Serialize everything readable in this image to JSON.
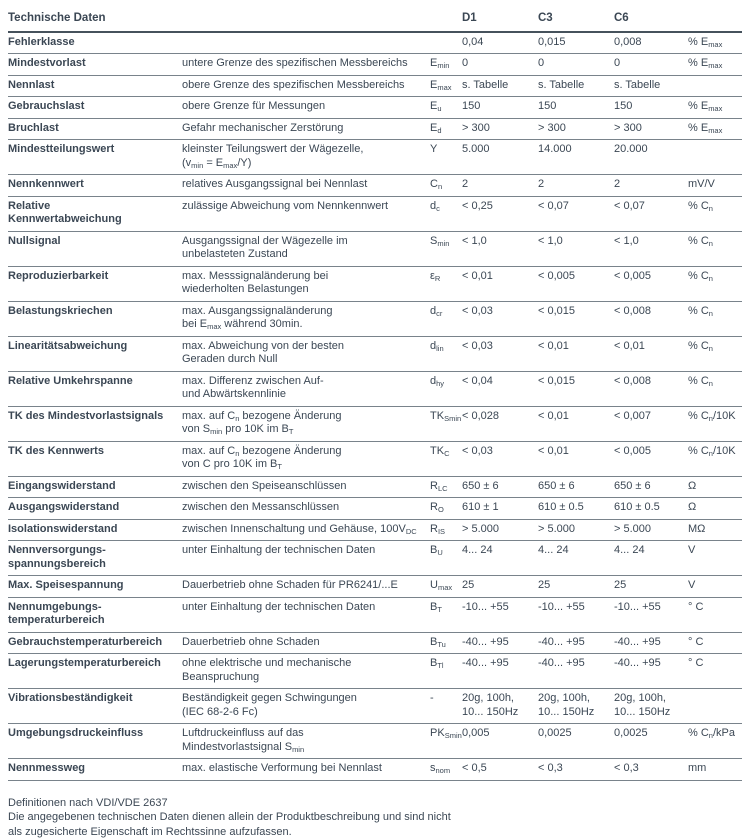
{
  "colors": {
    "text": "#3b4754",
    "rule": "#79838b",
    "header_rule": "#46525c",
    "background": "#ffffff"
  },
  "table": {
    "title": "Technische Daten",
    "columns": [
      "D1",
      "C3",
      "C6"
    ],
    "rows": [
      {
        "name": "Fehlerklasse",
        "desc": "",
        "sym": "",
        "v": [
          "0,04",
          "0,015",
          "0,008"
        ],
        "unit": "% E~max~"
      },
      {
        "name": "Mindestvorlast",
        "desc": "untere Grenze des spezifischen Messbereichs",
        "sym": "E~min~",
        "v": [
          "0",
          "0",
          "0"
        ],
        "unit": "% E~max~"
      },
      {
        "name": "Nennlast",
        "desc": "obere Grenze des spezifischen Messbereichs",
        "sym": "E~max~",
        "v": [
          "s. Tabelle",
          "s. Tabelle",
          "s. Tabelle"
        ],
        "unit": ""
      },
      {
        "name": "Gebrauchslast",
        "desc": "obere Grenze für Messungen",
        "sym": "E~u~",
        "v": [
          "150",
          "150",
          "150"
        ],
        "unit": "% E~max~"
      },
      {
        "name": "Bruchlast",
        "desc": "Gefahr mechanischer Zerstörung",
        "sym": "E~d~",
        "v": [
          "> 300",
          "> 300",
          "> 300"
        ],
        "unit": "% E~max~"
      },
      {
        "name": "Mindestteilungswert",
        "desc": "kleinster Teilungswert der Wägezelle,\n(v~min~ = E~max~/Y)",
        "sym": "Y",
        "v": [
          "5.000",
          "14.000",
          "20.000"
        ],
        "unit": ""
      },
      {
        "name": "Nennkennwert",
        "desc": "relatives Ausgangssignal bei Nennlast",
        "sym": "C~n~",
        "v": [
          "2",
          "2",
          "2"
        ],
        "unit": "mV/V"
      },
      {
        "name": "Relative\nKennwertabweichung",
        "desc": "zulässige Abweichung vom Nennkennwert",
        "sym": "d~c~",
        "v": [
          "< 0,25",
          "< 0,07",
          "< 0,07"
        ],
        "unit": "% C~n~"
      },
      {
        "name": "Nullsignal",
        "desc": "Ausgangssignal der Wägezelle im\nunbelasteten Zustand",
        "sym": "S~min~",
        "v": [
          "< 1,0",
          "< 1,0",
          "< 1,0"
        ],
        "unit": "% C~n~"
      },
      {
        "name": "Reproduzierbarkeit",
        "desc": "max. Messsignaländerung bei\nwiederholten Belastungen",
        "sym": "ε~R~",
        "v": [
          "< 0,01",
          "< 0,005",
          "< 0,005"
        ],
        "unit": "% C~n~"
      },
      {
        "name": "Belastungskriechen",
        "desc": "max. Ausgangssignaländerung\nbei E~max~ während 30min.",
        "sym": "d~cr~",
        "v": [
          "< 0,03",
          "< 0,015",
          "< 0,008"
        ],
        "unit": "% C~n~"
      },
      {
        "name": "Linearitätsabweichung",
        "desc": "max. Abweichung von der besten\nGeraden durch Null",
        "sym": "d~lin~",
        "v": [
          "< 0,03",
          "< 0,01",
          "< 0,01"
        ],
        "unit": "% C~n~"
      },
      {
        "name": "Relative Umkehrspanne",
        "desc": "max. Differenz zwischen Auf-\nund Abwärtskennlinie",
        "sym": "d~hy~",
        "v": [
          "< 0,04",
          "< 0,015",
          "< 0,008"
        ],
        "unit": "% C~n~"
      },
      {
        "name": "TK des Mindestvorlastsignals",
        "desc": "max. auf C~n~ bezogene Änderung\nvon S~min~ pro 10K im B~T~",
        "sym": "TK~Smin~",
        "v": [
          "< 0,028",
          "< 0,01",
          "< 0,007"
        ],
        "unit": "% C~n~/10K"
      },
      {
        "name": "TK des Kennwerts",
        "desc": "max. auf C~n~ bezogene Änderung\nvon C pro 10K im B~T~",
        "sym": "TK~C~",
        "v": [
          "< 0,03",
          "< 0,01",
          "< 0,005"
        ],
        "unit": "% C~n~/10K"
      },
      {
        "name": "Eingangswiderstand",
        "desc": "zwischen den Speiseanschlüssen",
        "sym": "R~LC~",
        "v": [
          "650 ± 6",
          "650 ± 6",
          "650 ± 6"
        ],
        "unit": "Ω"
      },
      {
        "name": "Ausgangswiderstand",
        "desc": "zwischen den Messanschlüssen",
        "sym": "R~O~",
        "v": [
          "610 ± 1",
          "610 ± 0.5",
          "610 ± 0.5"
        ],
        "unit": "Ω"
      },
      {
        "name": "Isolationswiderstand",
        "desc": "zwischen Innenschaltung und Gehäuse, 100V~DC~",
        "sym": "R~IS~",
        "v": [
          "> 5.000",
          "> 5.000",
          "> 5.000"
        ],
        "unit": "MΩ"
      },
      {
        "name": "Nennversorgungs-\nspannungsbereich",
        "desc": "unter Einhaltung der technischen Daten",
        "sym": "B~U~",
        "v": [
          "4... 24",
          "4... 24",
          "4... 24"
        ],
        "unit": "V"
      },
      {
        "name": "Max. Speisespannung",
        "desc": "Dauerbetrieb ohne Schaden für PR6241/...E",
        "sym": "U~max~",
        "v": [
          "25",
          "25",
          "25"
        ],
        "unit": "V"
      },
      {
        "name": "Nennumgebungs-\ntemperaturbereich",
        "desc": "unter Einhaltung der technischen Daten",
        "sym": "B~T~",
        "v": [
          "-10... +55",
          "-10... +55",
          "-10... +55"
        ],
        "unit": "° C"
      },
      {
        "name": "Gebrauchstemperaturbereich",
        "desc": "Dauerbetrieb ohne Schaden",
        "sym": "B~Tu~",
        "v": [
          "-40... +95",
          "-40... +95",
          "-40... +95"
        ],
        "unit": "° C"
      },
      {
        "name": "Lagerungstemperaturbereich",
        "desc": "ohne elektrische und mechanische\nBeanspruchung",
        "sym": "B~Tl~",
        "v": [
          "-40... +95",
          "-40... +95",
          "-40... +95"
        ],
        "unit": "° C"
      },
      {
        "name": "Vibrationsbeständigkeit",
        "desc": "Beständigkeit gegen Schwingungen\n(IEC 68-2-6 Fc)",
        "sym": "-",
        "v": [
          "20g, 100h,\n10... 150Hz",
          "20g, 100h,\n10... 150Hz",
          "20g, 100h,\n10... 150Hz"
        ],
        "unit": ""
      },
      {
        "name": "Umgebungsdruckeinfluss",
        "desc": "Luftdruckeinfluss auf das\nMindestvorlastsignal S~min~",
        "sym": "PK~Smin~",
        "v": [
          "0,005",
          "0,0025",
          "0,0025"
        ],
        "unit": "% C~n~/kPa"
      },
      {
        "name": "Nennmessweg",
        "desc": "max. elastische Verformung bei Nennlast",
        "sym": "s~nom~",
        "v": [
          "< 0,5",
          "< 0,3",
          "< 0,3"
        ],
        "unit": "mm"
      }
    ]
  },
  "footer": {
    "lines": [
      "Definitionen nach VDI/VDE 2637",
      "Die angegebenen technischen Daten dienen allein der Produktbeschreibung und sind nicht",
      "als zugesicherte Eigenschaft im Rechtssinne aufzufassen."
    ]
  }
}
